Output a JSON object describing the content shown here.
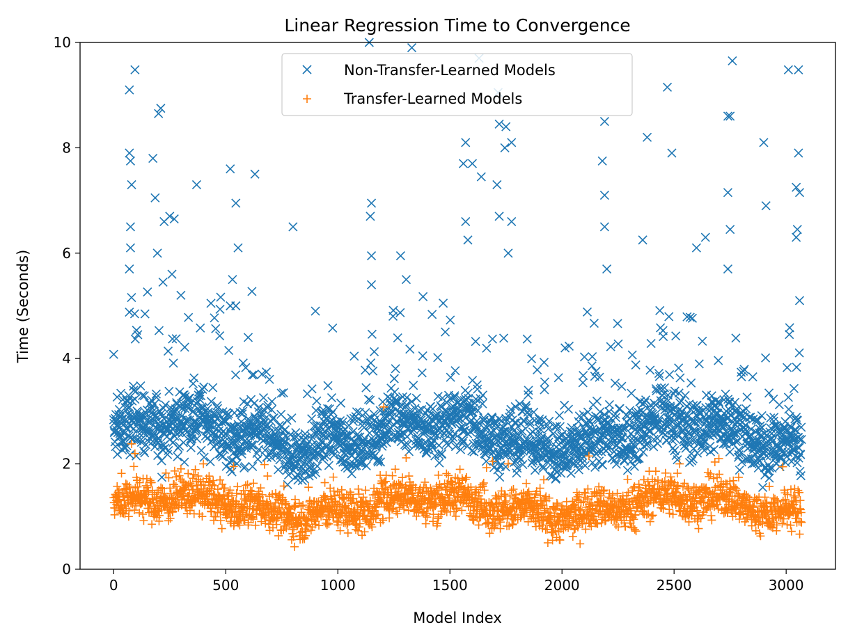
{
  "chart_data": {
    "type": "scatter",
    "title": "Linear Regression Time to Convergence",
    "xlabel": "Model Index",
    "ylabel": "Time (Seconds)",
    "xlim": [
      -150,
      3220
    ],
    "ylim": [
      0,
      10
    ],
    "xticks": [
      0,
      500,
      1000,
      1500,
      2000,
      2500,
      3000
    ],
    "yticks": [
      0,
      2,
      4,
      6,
      8,
      10
    ],
    "grid": false,
    "legend_position": "top-center",
    "series": [
      {
        "name": "Non-Transfer-Learned Models",
        "marker": "x",
        "color": "#1f77b4",
        "n_points": 3070,
        "x_range": [
          0,
          3070
        ],
        "typical_y_range": [
          1.8,
          3.3
        ],
        "outliers": [
          {
            "x": 0,
            "y": 4.08
          },
          {
            "x": 70,
            "y": 9.1
          },
          {
            "x": 95,
            "y": 9.48
          },
          {
            "x": 70,
            "y": 7.9
          },
          {
            "x": 75,
            "y": 7.75
          },
          {
            "x": 80,
            "y": 7.3
          },
          {
            "x": 75,
            "y": 6.5
          },
          {
            "x": 75,
            "y": 6.1
          },
          {
            "x": 70,
            "y": 5.7
          },
          {
            "x": 70,
            "y": 4.88
          },
          {
            "x": 175,
            "y": 7.8
          },
          {
            "x": 200,
            "y": 8.65
          },
          {
            "x": 210,
            "y": 8.75
          },
          {
            "x": 185,
            "y": 7.05
          },
          {
            "x": 225,
            "y": 6.6
          },
          {
            "x": 250,
            "y": 6.7
          },
          {
            "x": 270,
            "y": 6.65
          },
          {
            "x": 195,
            "y": 6.0
          },
          {
            "x": 220,
            "y": 5.45
          },
          {
            "x": 260,
            "y": 5.6
          },
          {
            "x": 300,
            "y": 5.2
          },
          {
            "x": 370,
            "y": 7.3
          },
          {
            "x": 520,
            "y": 7.6
          },
          {
            "x": 545,
            "y": 6.95
          },
          {
            "x": 555,
            "y": 6.1
          },
          {
            "x": 530,
            "y": 5.5
          },
          {
            "x": 520,
            "y": 5.0
          },
          {
            "x": 545,
            "y": 5.0
          },
          {
            "x": 600,
            "y": 4.4
          },
          {
            "x": 630,
            "y": 7.5
          },
          {
            "x": 800,
            "y": 6.5
          },
          {
            "x": 900,
            "y": 4.9
          },
          {
            "x": 1150,
            "y": 6.95
          },
          {
            "x": 1145,
            "y": 6.7
          },
          {
            "x": 1150,
            "y": 5.95
          },
          {
            "x": 1150,
            "y": 5.4
          },
          {
            "x": 1140,
            "y": 10.0
          },
          {
            "x": 1280,
            "y": 5.95
          },
          {
            "x": 1305,
            "y": 5.5
          },
          {
            "x": 1330,
            "y": 9.9
          },
          {
            "x": 1470,
            "y": 5.05
          },
          {
            "x": 1560,
            "y": 7.7
          },
          {
            "x": 1570,
            "y": 8.1
          },
          {
            "x": 1600,
            "y": 7.7
          },
          {
            "x": 1630,
            "y": 9.7
          },
          {
            "x": 1640,
            "y": 7.45
          },
          {
            "x": 1570,
            "y": 6.6
          },
          {
            "x": 1580,
            "y": 6.25
          },
          {
            "x": 1715,
            "y": 9.05
          },
          {
            "x": 1720,
            "y": 8.45
          },
          {
            "x": 1750,
            "y": 8.4
          },
          {
            "x": 1745,
            "y": 8.0
          },
          {
            "x": 1775,
            "y": 8.1
          },
          {
            "x": 1710,
            "y": 7.3
          },
          {
            "x": 1720,
            "y": 6.7
          },
          {
            "x": 1775,
            "y": 6.6
          },
          {
            "x": 1760,
            "y": 6.0
          },
          {
            "x": 2190,
            "y": 8.5
          },
          {
            "x": 2180,
            "y": 7.75
          },
          {
            "x": 2190,
            "y": 7.1
          },
          {
            "x": 2190,
            "y": 6.5
          },
          {
            "x": 2200,
            "y": 5.7
          },
          {
            "x": 2360,
            "y": 6.25
          },
          {
            "x": 2380,
            "y": 8.2
          },
          {
            "x": 2470,
            "y": 9.15
          },
          {
            "x": 2490,
            "y": 7.9
          },
          {
            "x": 2600,
            "y": 6.1
          },
          {
            "x": 2640,
            "y": 6.3
          },
          {
            "x": 2740,
            "y": 8.6
          },
          {
            "x": 2750,
            "y": 8.6
          },
          {
            "x": 2760,
            "y": 9.65
          },
          {
            "x": 2740,
            "y": 7.15
          },
          {
            "x": 2750,
            "y": 6.45
          },
          {
            "x": 2740,
            "y": 5.7
          },
          {
            "x": 2900,
            "y": 8.1
          },
          {
            "x": 2910,
            "y": 6.9
          },
          {
            "x": 3010,
            "y": 9.48
          },
          {
            "x": 3055,
            "y": 9.48
          },
          {
            "x": 3055,
            "y": 7.9
          },
          {
            "x": 3045,
            "y": 7.25
          },
          {
            "x": 3060,
            "y": 7.15
          },
          {
            "x": 3050,
            "y": 6.45
          },
          {
            "x": 3045,
            "y": 6.3
          },
          {
            "x": 3060,
            "y": 5.1
          }
        ]
      },
      {
        "name": "Transfer-Learned Models",
        "marker": "+",
        "color": "#ff7f0e",
        "n_points": 3070,
        "x_range": [
          0,
          3070
        ],
        "typical_y_range": [
          0.7,
          1.7
        ],
        "outliers": [
          {
            "x": 80,
            "y": 2.38
          },
          {
            "x": 90,
            "y": 1.95
          },
          {
            "x": 400,
            "y": 2.0
          },
          {
            "x": 535,
            "y": 1.95
          },
          {
            "x": 1205,
            "y": 3.08
          },
          {
            "x": 1690,
            "y": 2.05
          },
          {
            "x": 1760,
            "y": 2.0
          },
          {
            "x": 2120,
            "y": 2.15
          },
          {
            "x": 2525,
            "y": 2.0
          },
          {
            "x": 2700,
            "y": 2.1
          }
        ]
      }
    ]
  }
}
